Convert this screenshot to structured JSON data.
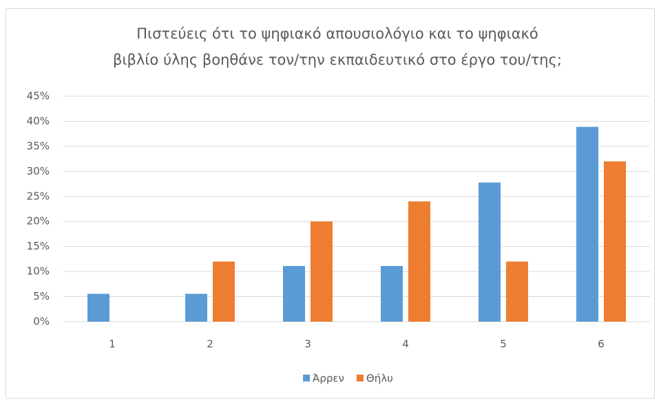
{
  "chart_data": {
    "type": "bar",
    "title": [
      "Πιστεύεις ότι το ψηφιακό απουσιολόγιο και το ψηφιακό",
      "βιβλίο ύλης βοηθάνε τον/την εκπαιδευτικό στο έργο του/της;"
    ],
    "categories": [
      "1",
      "2",
      "3",
      "4",
      "5",
      "6"
    ],
    "series": [
      {
        "name": "Άρρεν",
        "color": "#5b9bd5",
        "values": [
          5.56,
          5.56,
          11.11,
          11.11,
          27.78,
          38.89
        ]
      },
      {
        "name": "Θήλυ",
        "color": "#ed7d31",
        "values": [
          0,
          12,
          20,
          24,
          12,
          32
        ]
      }
    ],
    "ylim": [
      0,
      45
    ],
    "yticks": [
      {
        "value": 0,
        "label": "0%"
      },
      {
        "value": 5,
        "label": "5%"
      },
      {
        "value": 10,
        "label": "10%"
      },
      {
        "value": 15,
        "label": "15%"
      },
      {
        "value": 20,
        "label": "20%"
      },
      {
        "value": 25,
        "label": "25%"
      },
      {
        "value": 30,
        "label": "30%"
      },
      {
        "value": 35,
        "label": "35%"
      },
      {
        "value": 40,
        "label": "40%"
      },
      {
        "value": 45,
        "label": "45%"
      }
    ],
    "grid": true,
    "legend": "bottom"
  }
}
